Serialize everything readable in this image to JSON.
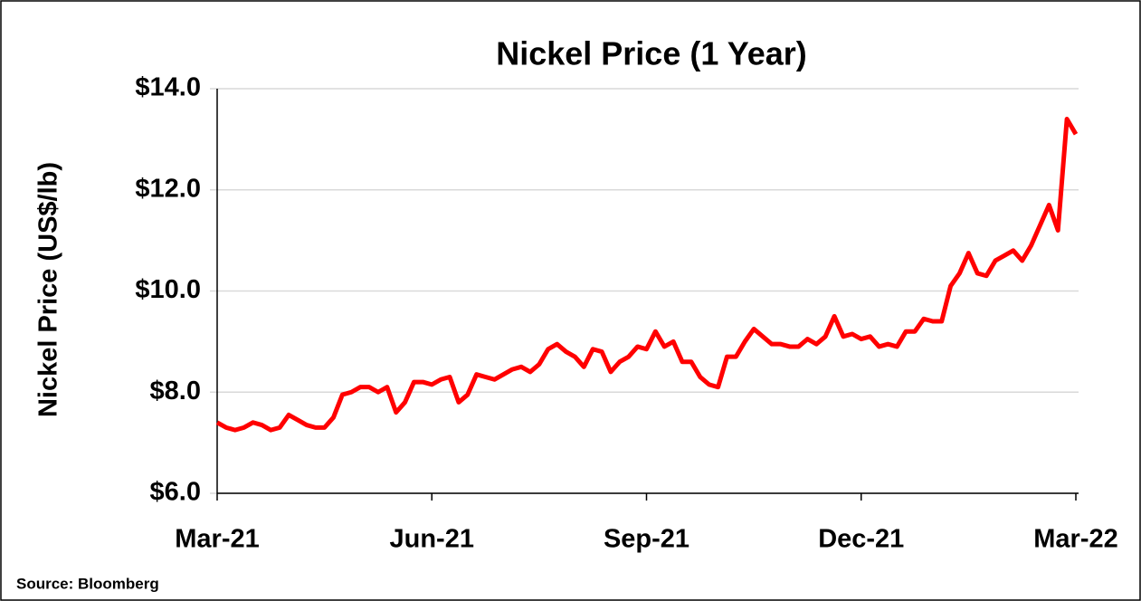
{
  "chart_data": {
    "type": "line",
    "title": "Nickel Price (1 Year)",
    "y_label": "Nickel Price (US$/lb)",
    "source": "Source: Bloomberg",
    "categories": [
      "Mar-21",
      null,
      null,
      null,
      null,
      null,
      null,
      null,
      null,
      null,
      null,
      null,
      null,
      null,
      null,
      null,
      null,
      null,
      null,
      null,
      null,
      null,
      null,
      null,
      "Jun-21",
      null,
      null,
      null,
      null,
      null,
      null,
      null,
      null,
      null,
      null,
      null,
      null,
      null,
      null,
      null,
      null,
      null,
      null,
      null,
      null,
      null,
      null,
      null,
      "Sep-21",
      null,
      null,
      null,
      null,
      null,
      null,
      null,
      null,
      null,
      null,
      null,
      null,
      null,
      null,
      null,
      null,
      null,
      null,
      null,
      null,
      null,
      null,
      null,
      "Dec-21",
      null,
      null,
      null,
      null,
      null,
      null,
      null,
      null,
      null,
      null,
      null,
      null,
      null,
      null,
      null,
      null,
      null,
      null,
      null,
      null,
      null,
      null,
      null,
      "Mar-22"
    ],
    "series": [
      {
        "name": "Nickel Price",
        "color": "#ff0000",
        "values": [
          7.4,
          7.3,
          7.25,
          7.3,
          7.4,
          7.35,
          7.25,
          7.3,
          7.55,
          7.45,
          7.35,
          7.3,
          7.3,
          7.5,
          7.95,
          8.0,
          8.1,
          8.1,
          8.0,
          8.1,
          7.6,
          7.8,
          8.2,
          8.2,
          8.15,
          8.25,
          8.3,
          7.8,
          7.95,
          8.35,
          8.3,
          8.25,
          8.35,
          8.45,
          8.5,
          8.4,
          8.55,
          8.85,
          8.95,
          8.8,
          8.7,
          8.5,
          8.85,
          8.8,
          8.4,
          8.6,
          8.7,
          8.9,
          8.85,
          9.2,
          8.9,
          9.0,
          8.6,
          8.6,
          8.3,
          8.15,
          8.1,
          8.7,
          8.7,
          9.0,
          9.25,
          9.1,
          8.95,
          8.95,
          8.9,
          8.9,
          9.05,
          8.95,
          9.1,
          9.5,
          9.1,
          9.15,
          9.05,
          9.1,
          8.9,
          8.95,
          8.9,
          9.2,
          9.2,
          9.45,
          9.4,
          9.4,
          10.1,
          10.35,
          10.75,
          10.35,
          10.3,
          10.6,
          10.7,
          10.8,
          10.6,
          10.9,
          11.3,
          11.7,
          11.2,
          13.4,
          13.1
        ]
      }
    ],
    "ylim": [
      6,
      14
    ],
    "yticks": [
      {
        "value": 6,
        "label": "$6.0"
      },
      {
        "value": 8,
        "label": "$8.0"
      },
      {
        "value": 10,
        "label": "$10.0"
      },
      {
        "value": 12,
        "label": "$12.0"
      },
      {
        "value": 14,
        "label": "$14.0"
      }
    ],
    "grid": true
  }
}
